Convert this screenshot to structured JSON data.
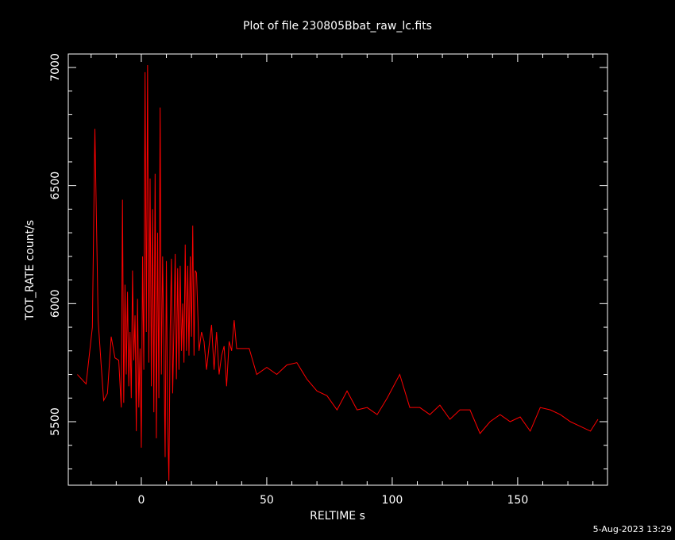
{
  "chart_data": {
    "type": "line",
    "title": "Plot of file 230805Bbat_raw_lc.fits",
    "x_label": "RELTIME  s",
    "y_label": "TOT_RATE  count/s",
    "footer": "5-Aug-2023 13:29",
    "color": "#ff0000",
    "x": [
      -25.5,
      -22,
      -19.5,
      -18.5,
      -17.2,
      -16,
      -15,
      -13.5,
      -12,
      -10.5,
      -9,
      -8,
      -7.5,
      -7,
      -6.5,
      -6,
      -5.5,
      -5,
      -4.5,
      -4,
      -3.5,
      -3,
      -2.5,
      -2,
      -1.5,
      -1,
      -0.5,
      0,
      0.5,
      1,
      1.5,
      2,
      2.5,
      3,
      3.5,
      4,
      4.5,
      5,
      5.5,
      6,
      6.5,
      7,
      7.5,
      8,
      8.5,
      9,
      9.5,
      10,
      10.5,
      11,
      11.5,
      12,
      12.5,
      13,
      13.5,
      14,
      14.5,
      15,
      15.5,
      16,
      16.5,
      17,
      17.5,
      18,
      18.5,
      19,
      19.5,
      20,
      20.5,
      21,
      21.5,
      22,
      23,
      24,
      25,
      26,
      27,
      28,
      29,
      30,
      31,
      32,
      33,
      34,
      35,
      36,
      37,
      38,
      40,
      43,
      46,
      50,
      54,
      58,
      62,
      66,
      70,
      74,
      78,
      82,
      86,
      90,
      94,
      98,
      103,
      107,
      111,
      115,
      119,
      123,
      127,
      131,
      135,
      139,
      143,
      147,
      151,
      155,
      159,
      163,
      167,
      171,
      175,
      179,
      182
    ],
    "values": [
      5700,
      5660,
      5900,
      6740,
      5930,
      5740,
      5590,
      5620,
      5860,
      5770,
      5760,
      5560,
      6440,
      5580,
      6080,
      5700,
      6050,
      5650,
      5880,
      5600,
      6140,
      5760,
      5950,
      5460,
      6020,
      5560,
      5810,
      5390,
      6200,
      5720,
      6980,
      5880,
      7010,
      5750,
      6530,
      5650,
      6400,
      5540,
      6550,
      5430,
      6300,
      5600,
      6830,
      5700,
      6200,
      5800,
      5350,
      6180,
      5500,
      5250,
      5880,
      6190,
      5620,
      5900,
      6210,
      5680,
      6150,
      5720,
      6160,
      5800,
      6000,
      5750,
      6250,
      5800,
      6160,
      5780,
      6200,
      5860,
      6330,
      5780,
      6140,
      6130,
      5800,
      5880,
      5840,
      5720,
      5820,
      5910,
      5720,
      5880,
      5700,
      5780,
      5820,
      5650,
      5840,
      5800,
      5930,
      5810,
      5810,
      5810,
      5700,
      5730,
      5700,
      5740,
      5750,
      5680,
      5630,
      5610,
      5550,
      5630,
      5550,
      5560,
      5530,
      5600,
      5700,
      5560,
      5560,
      5530,
      5570,
      5510,
      5550,
      5550,
      5450,
      5500,
      5530,
      5500,
      5520,
      5460,
      5560,
      5550,
      5530,
      5500,
      5480,
      5460,
      5510
    ],
    "xlim": [
      -29.1,
      185.8
    ],
    "ylim": [
      5231,
      7057
    ],
    "xticks": [
      0,
      50,
      100,
      150
    ],
    "yticks": [
      5500,
      6000,
      6500,
      7000
    ],
    "xminor_ticks": [
      -20,
      -10,
      10,
      20,
      30,
      40,
      60,
      70,
      80,
      90,
      110,
      120,
      130,
      140,
      160,
      170,
      180
    ],
    "yminor_ticks": [
      5300,
      5400,
      5600,
      5700,
      5800,
      5900,
      6100,
      6200,
      6300,
      6400,
      6600,
      6700,
      6800,
      6900
    ]
  }
}
